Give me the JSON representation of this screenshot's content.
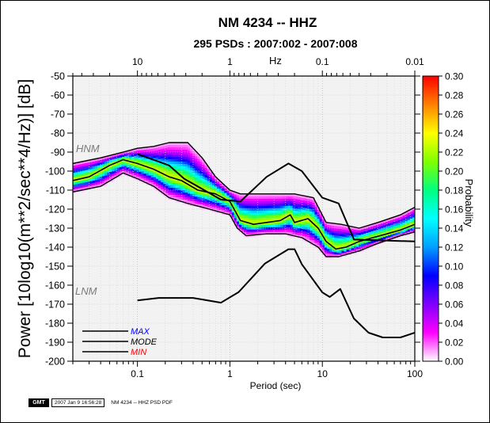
{
  "footer": {
    "logo_text": "GMT",
    "timestamp": "2007 Jan  9 16:56:28",
    "caption": "NM 4234 -- HHZ PSD PDF"
  },
  "chart_data": {
    "type": "heatmap",
    "title": "NM 4234 -- HHZ",
    "subtitle": "295 PSDs : 2007:002 - 2007:008",
    "xlabel": "Period (sec)",
    "ylabel": "Power [10log10(m**2/sec**4/Hz)] [dB]",
    "top_axis_label": "Hz",
    "x_scale": "log",
    "xlim": [
      0.02,
      100
    ],
    "ylim": [
      -200,
      -50
    ],
    "x_ticks": [
      0.1,
      1,
      10,
      100
    ],
    "x_tick_labels": [
      "0.1",
      "1",
      "10",
      "100"
    ],
    "top_ticks_hz": [
      10,
      1,
      0.1,
      0.01
    ],
    "top_tick_labels": [
      "10",
      "1",
      "0.1",
      "0.01"
    ],
    "y_ticks": [
      -50,
      -60,
      -70,
      -80,
      -90,
      -100,
      -110,
      -120,
      -130,
      -140,
      -150,
      -160,
      -170,
      -180,
      -190,
      -200
    ],
    "y_tick_labels": [
      "-50",
      "-60",
      "-70",
      "-80",
      "-90",
      "-100",
      "-110",
      "-120",
      "-130",
      "-140",
      "-150",
      "-160",
      "-170",
      "-180",
      "-190",
      "-200"
    ],
    "colorbar": {
      "label": "Probability",
      "range": [
        0,
        0.3
      ],
      "ticks": [
        "0.00",
        "0.02",
        "0.04",
        "0.06",
        "0.08",
        "0.10",
        "0.12",
        "0.14",
        "0.16",
        "0.18",
        "0.20",
        "0.22",
        "0.24",
        "0.26",
        "0.28",
        "0.30"
      ],
      "colors": [
        "#ffffff",
        "#ff00ff",
        "#8000ff",
        "#0000ff",
        "#00a0ff",
        "#00ffff",
        "#00ff80",
        "#80ff00",
        "#ffff00",
        "#ff8000",
        "#ff0000"
      ]
    },
    "legend": {
      "placement": "bottom-left",
      "entries": [
        {
          "label": "MAX",
          "color": "#0000ff"
        },
        {
          "label": "MODE",
          "color": "#000000"
        },
        {
          "label": "MIN",
          "color": "#ff0000"
        }
      ]
    },
    "annotations": {
      "hnm": "HNM",
      "lnm": "LNM"
    },
    "hnm": {
      "periods": [
        0.1,
        0.22,
        0.32,
        0.8,
        1.3,
        2.5,
        4.3,
        6,
        10,
        15,
        22,
        100
      ],
      "power": [
        -91,
        -97,
        -104,
        -115,
        -116,
        -103,
        -96,
        -100,
        -114,
        -117,
        -136,
        -137
      ]
    },
    "lnm": {
      "periods": [
        0.1,
        0.17,
        0.4,
        0.8,
        1.24,
        2.4,
        4.3,
        5,
        6,
        10,
        12,
        15.6,
        21.9,
        31.6,
        45,
        70,
        100
      ],
      "power": [
        -168,
        -166.7,
        -166.7,
        -169.2,
        -163.7,
        -148.6,
        -141.1,
        -141.1,
        -149,
        -163.8,
        -166.2,
        -162,
        -177.5,
        -185,
        -187.5,
        -187.5,
        -185
      ]
    },
    "pdf_max": {
      "periods": [
        0.02,
        0.04,
        0.07,
        0.1,
        0.15,
        0.22,
        0.35,
        0.5,
        0.7,
        1,
        1.3,
        1.8,
        3,
        5,
        8,
        11,
        16,
        25,
        40,
        70,
        100
      ],
      "power": [
        -96,
        -93,
        -90,
        -88,
        -87,
        -85,
        -85,
        -93,
        -103,
        -110,
        -112,
        -112,
        -112,
        -112,
        -114,
        -127,
        -128,
        -130,
        -127,
        -123,
        -119
      ]
    },
    "pdf_mode": {
      "periods": [
        0.02,
        0.03,
        0.05,
        0.07,
        0.1,
        0.15,
        0.22,
        0.3,
        0.45,
        0.7,
        1,
        1.3,
        1.8,
        2.5,
        3.5,
        4.5,
        5,
        7,
        9,
        11,
        14,
        18,
        25,
        35,
        50,
        70,
        100
      ],
      "power": [
        -105,
        -103,
        -97,
        -94,
        -96,
        -99,
        -103,
        -105,
        -110,
        -112,
        -116,
        -126,
        -128,
        -127,
        -126,
        -123,
        -127,
        -125,
        -130,
        -137,
        -141,
        -140,
        -137,
        -135,
        -133,
        -131,
        -128
      ]
    },
    "pdf_min": {
      "periods": [
        0.02,
        0.04,
        0.07,
        0.1,
        0.15,
        0.22,
        0.35,
        0.6,
        1,
        1.2,
        1.5,
        2.5,
        4,
        6,
        9,
        11,
        15,
        25,
        40,
        70,
        100
      ],
      "power": [
        -111,
        -108,
        -101,
        -104,
        -108,
        -114,
        -117,
        -120,
        -123,
        -130,
        -134,
        -133,
        -133,
        -135,
        -140,
        -145,
        -145,
        -142,
        -138,
        -134,
        -132
      ]
    }
  }
}
